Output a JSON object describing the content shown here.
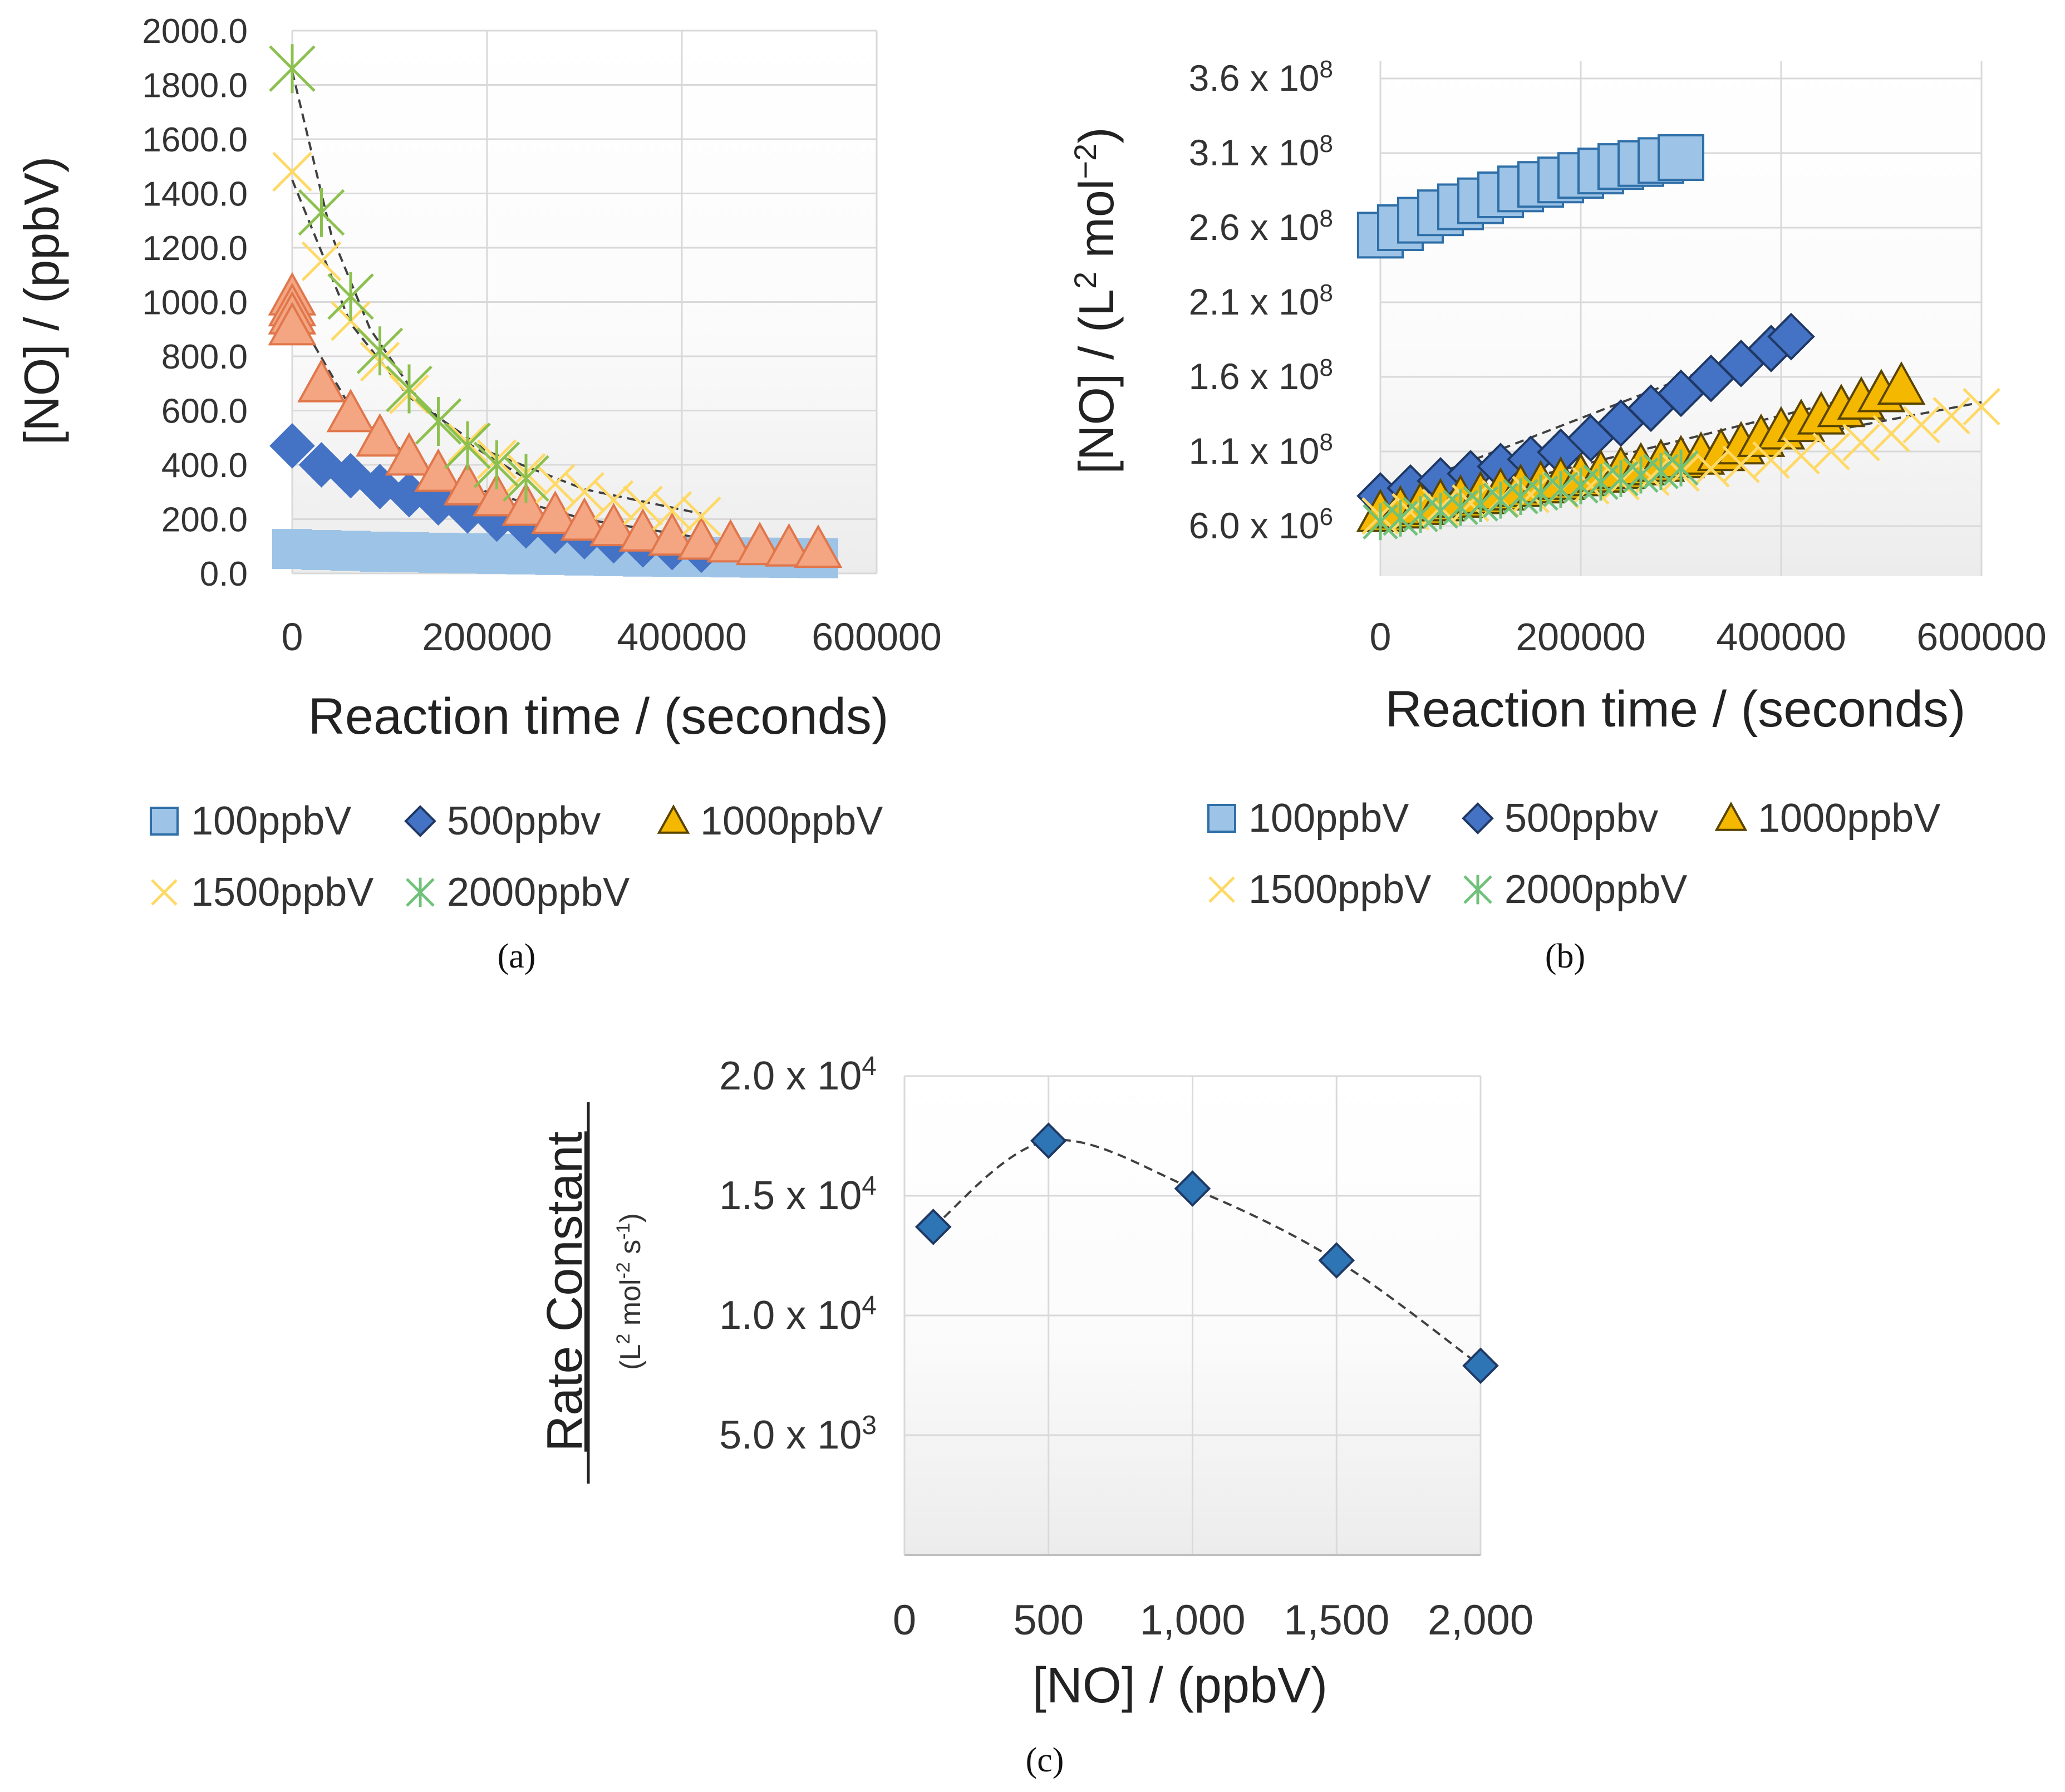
{
  "colors": {
    "s100": "#9dc3e6",
    "s100_b": "#2f6fa8",
    "s500": "#4472c4",
    "s500_b": "#1f3864",
    "s1000_a": "#f4a582",
    "s1000_a_b": "#e0764b",
    "s1000_b": "#f5b800",
    "s1000_b_b": "#5a4500",
    "s1500": "#ffd966",
    "s2000": "#70c17a",
    "s2000_a": "#8cc04f",
    "grid": "#d9d9d9",
    "trend": "#404040",
    "pc": "#2e75b6",
    "pc_b": "#1f3864"
  },
  "chart_data": [
    {
      "id": "a",
      "type": "scatter",
      "panel_label": "(a)",
      "xlabel": "Reaction time / (seconds)",
      "ylabel": "[NO] / (ppbV)",
      "xlim": [
        0,
        600000
      ],
      "ylim": [
        0,
        2000
      ],
      "xticks": [
        "0",
        "200000",
        "400000",
        "600000"
      ],
      "yticks": [
        "0.0",
        "200.0",
        "400.0",
        "600.0",
        "800.0",
        "1000.0",
        "1200.0",
        "1400.0",
        "1600.0",
        "1800.0",
        "2000.0"
      ],
      "legend": [
        "100ppbV",
        "500ppbv",
        "1000ppbV",
        "1500ppbV",
        "2000ppbV"
      ],
      "series": [
        {
          "name": "100ppbV",
          "marker": "square",
          "x": [
            0,
            30000,
            60000,
            90000,
            120000,
            150000,
            180000,
            210000,
            240000,
            270000,
            300000,
            330000,
            360000,
            390000,
            420000,
            450000,
            480000,
            510000,
            540000
          ],
          "y": [
            90,
            86,
            83,
            80,
            78,
            76,
            74,
            72,
            70,
            68,
            66,
            64,
            62,
            61,
            60,
            59,
            58,
            57,
            56
          ],
          "trend": [
            [
              0,
              92
            ],
            [
              540000,
              58
            ]
          ]
        },
        {
          "name": "500ppbv",
          "marker": "diamond",
          "x": [
            0,
            30000,
            60000,
            90000,
            120000,
            150000,
            180000,
            210000,
            240000,
            270000,
            300000,
            330000,
            360000,
            390000,
            420000
          ],
          "y": [
            470,
            400,
            360,
            320,
            290,
            260,
            230,
            200,
            175,
            155,
            135,
            120,
            105,
            95,
            85
          ],
          "trend": [
            [
              0,
              430
            ],
            [
              100000,
              310
            ],
            [
              200000,
              215
            ],
            [
              300000,
              145
            ],
            [
              420000,
              90
            ]
          ]
        },
        {
          "name": "1000ppbV",
          "marker": "triangle",
          "x": [
            0,
            0,
            0,
            0,
            30000,
            60000,
            90000,
            120000,
            150000,
            180000,
            210000,
            240000,
            270000,
            300000,
            330000,
            360000,
            390000,
            420000,
            450000,
            480000,
            510000,
            540000
          ],
          "y": [
            1020,
            980,
            950,
            910,
            700,
            590,
            500,
            430,
            370,
            320,
            280,
            245,
            215,
            190,
            170,
            150,
            135,
            120,
            110,
            100,
            95,
            90
          ],
          "trend": [
            [
              0,
              980
            ],
            [
              60000,
              610
            ],
            [
              120000,
              430
            ],
            [
              200000,
              300
            ],
            [
              300000,
              200
            ],
            [
              420000,
              130
            ],
            [
              540000,
              95
            ]
          ]
        },
        {
          "name": "1500ppbV",
          "marker": "x",
          "x": [
            0,
            30000,
            60000,
            90000,
            120000,
            150000,
            180000,
            210000,
            240000,
            270000,
            300000,
            330000,
            360000,
            390000,
            420000
          ],
          "y": [
            1480,
            1150,
            930,
            780,
            660,
            560,
            480,
            420,
            370,
            330,
            300,
            270,
            250,
            230,
            210
          ],
          "trend": [
            [
              0,
              1450
            ],
            [
              60000,
              920
            ],
            [
              120000,
              650
            ],
            [
              200000,
              450
            ],
            [
              300000,
              310
            ],
            [
              420000,
              220
            ]
          ]
        },
        {
          "name": "2000ppbV",
          "marker": "asterisk",
          "x": [
            0,
            30000,
            60000,
            90000,
            120000,
            150000,
            180000,
            210000,
            240000
          ],
          "y": [
            1860,
            1330,
            1020,
            820,
            680,
            560,
            470,
            400,
            350
          ],
          "trend": [
            [
              0,
              1850
            ],
            [
              40000,
              1250
            ],
            [
              80000,
              900
            ],
            [
              130000,
              640
            ],
            [
              180000,
              480
            ],
            [
              240000,
              350
            ]
          ]
        }
      ]
    },
    {
      "id": "b",
      "type": "scatter",
      "panel_label": "(b)",
      "xlabel": "Reaction time / (seconds)",
      "ylabel_main": "[NO] / (L",
      "ylabel_sup1": "2",
      "ylabel_mid": " mol",
      "ylabel_sup2": "−2",
      "ylabel_end": ")",
      "xlim": [
        0,
        600000
      ],
      "ylim": [
        6000000,
        360000000
      ],
      "xticks": [
        "0",
        "200000",
        "400000",
        "600000"
      ],
      "yticks": [
        {
          "mant": "6.0 x 10",
          "exp": "6"
        },
        {
          "mant": "1.1 x 10",
          "exp": "8"
        },
        {
          "mant": "1.6 x 10",
          "exp": "8"
        },
        {
          "mant": "2.1 x 10",
          "exp": "8"
        },
        {
          "mant": "2.6 x 10",
          "exp": "8"
        },
        {
          "mant": "3.1 x 10",
          "exp": "8"
        },
        {
          "mant": "3.6 x 10",
          "exp": "8"
        }
      ],
      "legend": [
        "100ppbV",
        "500ppbv",
        "1000ppbV",
        "1500ppbV",
        "2000ppbV"
      ],
      "series": [
        {
          "name": "100ppbV",
          "marker": "square",
          "x": [
            0,
            20000,
            40000,
            60000,
            80000,
            100000,
            120000,
            140000,
            160000,
            180000,
            200000,
            220000,
            240000,
            260000,
            280000,
            300000
          ],
          "y": [
            255000000,
            260000000,
            265000000,
            270000000,
            274000000,
            278000000,
            282000000,
            286000000,
            289000000,
            292000000,
            295000000,
            298000000,
            301000000,
            303000000,
            305000000,
            307000000
          ],
          "trend": [
            [
              0,
              256000000
            ],
            [
              300000,
              305000000
            ]
          ]
        },
        {
          "name": "500ppbv",
          "marker": "diamond",
          "x": [
            0,
            30000,
            60000,
            90000,
            120000,
            150000,
            180000,
            210000,
            240000,
            270000,
            300000,
            330000,
            360000,
            390000,
            410000
          ],
          "y": [
            48000000,
            59000000,
            69000000,
            79000000,
            89000000,
            99000000,
            109000000,
            119000000,
            129000000,
            139000000,
            149000000,
            159000000,
            169000000,
            179000000,
            187000000
          ],
          "trend": [
            [
              0,
              48000000
            ],
            [
              410000,
              187000000
            ]
          ]
        },
        {
          "name": "1000ppbV",
          "marker": "triangle",
          "x": [
            0,
            20000,
            40000,
            60000,
            80000,
            100000,
            120000,
            140000,
            160000,
            180000,
            200000,
            220000,
            240000,
            260000,
            280000,
            300000,
            320000,
            340000,
            360000,
            380000,
            400000,
            420000,
            440000,
            460000,
            480000,
            500000,
            520000
          ],
          "y": [
            24000000,
            29000000,
            34000000,
            39000000,
            44000000,
            49000000,
            54000000,
            59000000,
            64000000,
            69000000,
            74000000,
            79000000,
            84000000,
            89000000,
            94000000,
            99000000,
            104000000,
            109000000,
            114000000,
            119000000,
            124000000,
            129000000,
            134000000,
            139000000,
            144000000,
            149000000,
            154000000
          ],
          "trend": [
            [
              0,
              22000000
            ],
            [
              520000,
              154000000
            ]
          ]
        },
        {
          "name": "1500ppbV",
          "marker": "x",
          "x": [
            0,
            30000,
            60000,
            90000,
            120000,
            150000,
            180000,
            210000,
            240000,
            270000,
            300000,
            330000,
            360000,
            390000,
            420000,
            450000,
            480000,
            510000,
            540000,
            570000,
            600000
          ],
          "y": [
            20000000,
            26000000,
            32000000,
            38000000,
            44000000,
            50000000,
            56000000,
            62000000,
            68000000,
            74000000,
            80000000,
            86000000,
            92000000,
            98000000,
            104000000,
            110000000,
            116000000,
            122000000,
            128000000,
            134000000,
            140000000
          ],
          "trend": [
            [
              0,
              19000000
            ],
            [
              600000,
              143000000
            ]
          ]
        },
        {
          "name": "2000ppbV",
          "marker": "asterisk",
          "x": [
            0,
            20000,
            40000,
            60000,
            80000,
            100000,
            120000,
            140000,
            160000,
            180000,
            200000,
            220000,
            240000,
            260000,
            280000,
            300000
          ],
          "y": [
            12000000,
            17000000,
            22000000,
            27000000,
            32000000,
            37000000,
            42000000,
            47000000,
            52000000,
            57000000,
            62000000,
            67000000,
            72000000,
            77000000,
            82000000,
            87000000
          ],
          "trend": [
            [
              0,
              13000000
            ],
            [
              300000,
              86000000
            ]
          ]
        }
      ]
    },
    {
      "id": "c",
      "type": "scatter",
      "panel_label": "(c)",
      "xlabel": "[NO] / (ppbV)",
      "ylabel_top": "Rate Constant",
      "ylabel_unit_L": "(L",
      "ylabel_unit_sup1": "2",
      "ylabel_unit_mid": " mol",
      "ylabel_unit_sup2": "-2",
      "ylabel_unit_s": " s",
      "ylabel_unit_sup3": "-1",
      "ylabel_unit_end": ")",
      "xlim": [
        0,
        2000
      ],
      "ylim": [
        0,
        20000
      ],
      "xticks": [
        "0",
        "500",
        "1,000",
        "1,500",
        "2,000"
      ],
      "yticks": [
        {
          "mant": "5.0 x 10",
          "exp": "3"
        },
        {
          "mant": "1.0 x 10",
          "exp": "4"
        },
        {
          "mant": "1.5 x 10",
          "exp": "4"
        },
        {
          "mant": "2.0 x 10",
          "exp": "4"
        }
      ],
      "series": [
        {
          "name": "Rate constant",
          "marker": "diamond",
          "x": [
            100,
            500,
            1000,
            1500,
            2000
          ],
          "y": [
            13700,
            17300,
            15300,
            12300,
            7900
          ]
        }
      ]
    }
  ]
}
